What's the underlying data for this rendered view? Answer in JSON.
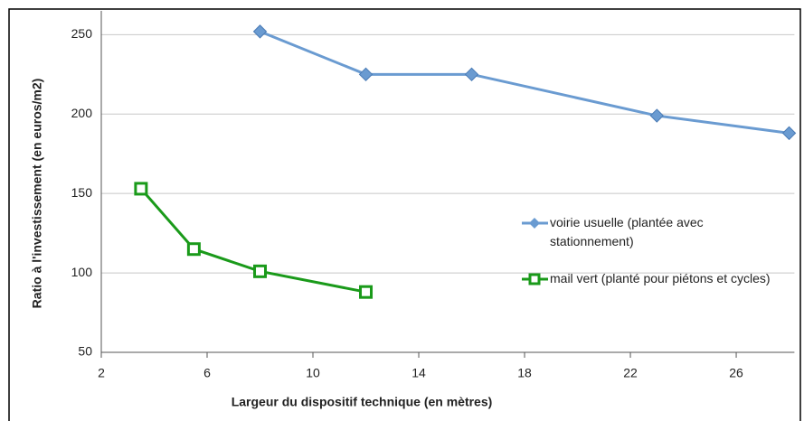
{
  "chart_data": {
    "type": "line",
    "x_label": "Largeur du dispositif technique (en mètres)",
    "y_label": "Ratio à l'investissement (en euros/m2)",
    "xlim": [
      2,
      28.2
    ],
    "xticks": [
      2,
      6,
      10,
      14,
      18,
      22,
      26
    ],
    "ylim": [
      50,
      265
    ],
    "yticks": [
      50,
      100,
      150,
      200,
      250
    ],
    "grid": true,
    "legend": "right",
    "series": [
      {
        "name": "voirie usuelle (plantée avec stationnement)",
        "color": "#6a9bd1",
        "marker": "diamond",
        "x": [
          8,
          12,
          16,
          23,
          28
        ],
        "values": [
          252,
          225,
          225,
          199,
          188
        ]
      },
      {
        "name": "mail vert (planté pour piétons et cycles)",
        "color": "#1a9a1a",
        "marker": "square-open",
        "x": [
          3.5,
          5.5,
          8,
          12
        ],
        "values": [
          153,
          115,
          101,
          88
        ]
      }
    ]
  }
}
